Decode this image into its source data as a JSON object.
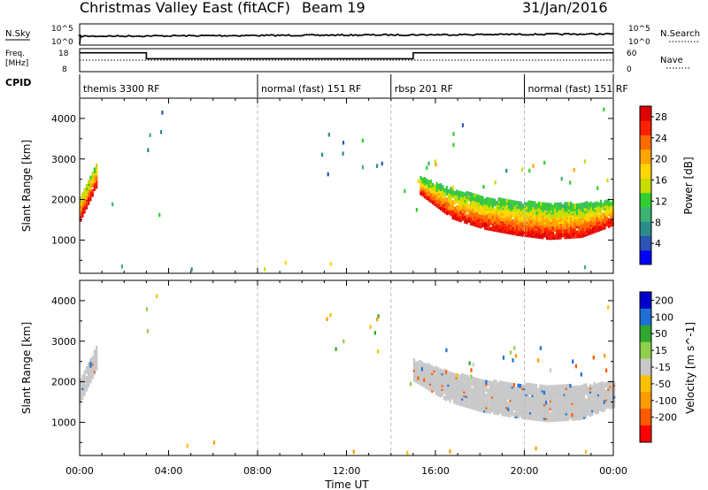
{
  "header": {
    "station": "Christmas Valley East (fitACF)",
    "beam": "Beam 19",
    "date": "31/Jan/2016"
  },
  "strip": {
    "nsky_label": "N.Sky",
    "nsky_ticks": [
      "10^5",
      "10^0"
    ],
    "nsky_right_ticks": [
      "10^5",
      "10^0"
    ],
    "nsearch_label": "N.Search",
    "freq_label_1": "Freq.",
    "freq_label_2": "[MHz]",
    "freq_ticks": [
      "18",
      "8"
    ],
    "nave_ticks": [
      "60",
      "0"
    ],
    "nave_label": "Nave",
    "cpid_label": "CPID",
    "cpid_segments": [
      {
        "label": "themis 3300 RF",
        "start": 0,
        "end": 8
      },
      {
        "label": "normal (fast) 151 RF",
        "start": 8,
        "end": 14
      },
      {
        "label": "rbsp 201 RF",
        "start": 14,
        "end": 20
      },
      {
        "label": "normal (fast) 151 RF",
        "start": 20,
        "end": 24
      }
    ],
    "freq_steps": [
      [
        0,
        16.2
      ],
      [
        3,
        16.2
      ],
      [
        3,
        13.6
      ],
      [
        15,
        13.6
      ],
      [
        15,
        16.2
      ],
      [
        24,
        16.2
      ]
    ],
    "nave_level": 30
  },
  "colors": {
    "power": [
      "#0000ff",
      "#2c55b4",
      "#2e8b8b",
      "#3cb371",
      "#32cd32",
      "#c8dc00",
      "#ffd700",
      "#ffa500",
      "#ff6a00",
      "#ff2000",
      "#e00000"
    ],
    "velocity": [
      "#0000cc",
      "#1e6fd6",
      "#2ea82e",
      "#8fcf4a",
      "#c8c8c8",
      "#ffc000",
      "#ff9a00",
      "#ff5a00",
      "#ff0000"
    ]
  },
  "chart_data": [
    {
      "type": "heatmap",
      "panel": "power",
      "ylabel": "Slant Range [km]",
      "ylim": [
        180,
        4500
      ],
      "yticks": [
        1000,
        2000,
        3000,
        4000
      ],
      "colorbar_label": "Power [dB]",
      "colorbar_ticks": [
        28,
        24,
        20,
        16,
        12,
        8,
        4
      ],
      "colorbar_range": [
        0,
        30
      ],
      "bands": [
        {
          "t": [
            0.0,
            0.75
          ],
          "r_lo": [
            1450,
            2300
          ],
          "r_hi": [
            2000,
            2850
          ],
          "pmax": 30,
          "pmin": 14
        },
        {
          "t": [
            15.3,
            24.0
          ],
          "r_lo": [
            2100,
            1500,
            1250,
            1100,
            1000,
            1050,
            1350
          ],
          "r_hi": [
            2500,
            2200,
            2000,
            1900,
            1850,
            1850,
            1950
          ],
          "pmax": 29,
          "pmin": 12
        }
      ],
      "clusters": [
        {
          "t": [
            10.8,
            13.6
          ],
          "r": [
            2500,
            3600
          ],
          "pmax": 14,
          "pmin": 4
        },
        {
          "t": [
            15.0,
            24.0
          ],
          "r": [
            2200,
            2900
          ],
          "pmax": 22,
          "pmin": 6
        },
        {
          "t": [
            2.8,
            3.7
          ],
          "r": [
            3000,
            4300
          ],
          "pmax": 14,
          "pmin": 4
        },
        {
          "t": [
            2.8,
            3.8
          ],
          "r": [
            1500,
            1900
          ],
          "pmax": 14,
          "pmin": 4
        },
        {
          "t": [
            1.0,
            1.8
          ],
          "r": [
            1400,
            1900
          ],
          "pmax": 14,
          "pmin": 4
        },
        {
          "t": [
            14.5,
            15.2
          ],
          "r": [
            1600,
            2300
          ],
          "pmax": 28,
          "pmin": 10
        },
        {
          "t": [
            0.0,
            24.0
          ],
          "r": [
            180,
            400
          ],
          "pmax": 20,
          "pmin": 4
        },
        {
          "t": [
            23.4,
            24.0
          ],
          "r": [
            3700,
            4300
          ],
          "pmax": 14,
          "pmin": 4
        },
        {
          "t": [
            16.2,
            17.3
          ],
          "r": [
            3000,
            3800
          ],
          "pmax": 14,
          "pmin": 4
        }
      ]
    },
    {
      "type": "heatmap",
      "panel": "velocity",
      "ylabel": "Slant Range [km]",
      "ylim": [
        180,
        4500
      ],
      "yticks": [
        1000,
        2000,
        3000,
        4000
      ],
      "xlabel": "Time UT",
      "xticks": [
        "00:00",
        "04:00",
        "08:00",
        "12:00",
        "16:00",
        "20:00",
        "00:00"
      ],
      "xlim": [
        0,
        24
      ],
      "colorbar_label": "Velocity [m s^-1]",
      "colorbar_ticks": [
        200,
        100,
        50,
        15,
        -15,
        -50,
        -100,
        -200
      ],
      "bands": [
        {
          "t": [
            0.0,
            0.75
          ],
          "r_lo": [
            1450,
            2300
          ],
          "r_hi": [
            2000,
            2850
          ],
          "vmin": -15,
          "vmax": 15
        },
        {
          "t": [
            15.0,
            24.0
          ],
          "r_lo": [
            2000,
            1500,
            1250,
            1100,
            1000,
            1050,
            1350
          ],
          "r_hi": [
            2500,
            2200,
            2000,
            1900,
            1850,
            1850,
            1950
          ],
          "vmin": -15,
          "vmax": 15
        }
      ],
      "clusters": [
        {
          "t": [
            10.8,
            13.6
          ],
          "r": [
            2500,
            3600
          ],
          "vmin": -100,
          "vmax": 100
        },
        {
          "t": [
            16.0,
            24.0
          ],
          "r": [
            2000,
            2800
          ],
          "vmin": -200,
          "vmax": 200
        },
        {
          "t": [
            14.4,
            15.0
          ],
          "r": [
            1800,
            2400
          ],
          "vmin": 20,
          "vmax": 60
        },
        {
          "t": [
            0.0,
            24.0
          ],
          "r": [
            180,
            450
          ],
          "vmin": -110,
          "vmax": -20
        },
        {
          "t": [
            2.8,
            3.6
          ],
          "r": [
            3000,
            4200
          ],
          "vmin": -60,
          "vmax": 60
        },
        {
          "t": [
            23.4,
            24.0
          ],
          "r": [
            3700,
            4400
          ],
          "vmin": -50,
          "vmax": 50
        }
      ]
    }
  ]
}
